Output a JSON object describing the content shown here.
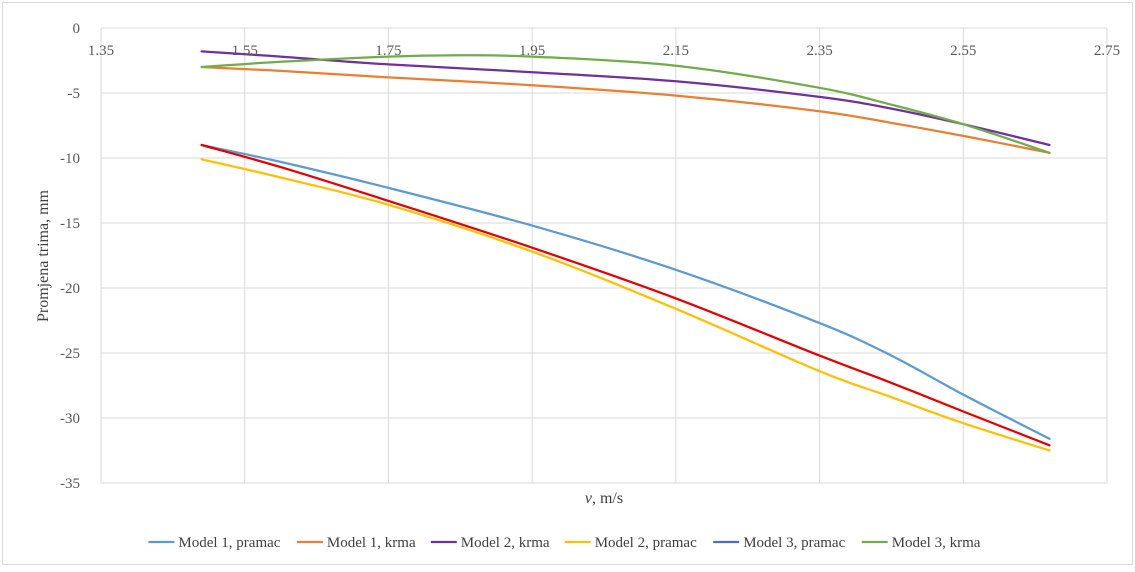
{
  "chart_data": {
    "type": "line",
    "title": "",
    "xlabel_var": "v",
    "xlabel_unit": ", m/s",
    "ylabel": "Promjena trima, mm",
    "xlim": [
      1.35,
      2.75
    ],
    "ylim": [
      -35,
      0
    ],
    "x_ticks": [
      1.35,
      1.55,
      1.75,
      1.95,
      2.15,
      2.35,
      2.55,
      2.75
    ],
    "x_tick_labels": [
      "1.35",
      "1.55",
      "1.75",
      "1.95",
      "2.15",
      "2.35",
      "2.55",
      "2.75"
    ],
    "y_ticks": [
      0,
      -5,
      -10,
      -15,
      -20,
      -25,
      -30,
      -35
    ],
    "y_tick_labels": [
      "0",
      "-5",
      "-10",
      "-15",
      "-20",
      "-25",
      "-30",
      "-35"
    ],
    "x_axis_position": "top",
    "grid": true,
    "legend_position": "bottom",
    "series": [
      {
        "name": "Model 1, pramac",
        "color": "#5B9BD5",
        "x": [
          1.49,
          1.6,
          1.75,
          1.95,
          2.15,
          2.35,
          2.45,
          2.55,
          2.67
        ],
        "y": [
          -9.0,
          -10.3,
          -12.3,
          -15.2,
          -18.6,
          -22.7,
          -25.2,
          -28.2,
          -31.6
        ]
      },
      {
        "name": "Model 1, krma",
        "color": "#ED7D31",
        "x": [
          1.49,
          1.6,
          1.75,
          1.95,
          2.15,
          2.35,
          2.45,
          2.55,
          2.67
        ],
        "y": [
          -3.0,
          -3.3,
          -3.8,
          -4.4,
          -5.2,
          -6.4,
          -7.3,
          -8.3,
          -9.6
        ]
      },
      {
        "name": "Model 2, krma",
        "color": "#7030A0",
        "x": [
          1.49,
          1.6,
          1.75,
          1.95,
          2.15,
          2.35,
          2.45,
          2.55,
          2.67
        ],
        "y": [
          -1.8,
          -2.2,
          -2.8,
          -3.4,
          -4.1,
          -5.3,
          -6.2,
          -7.4,
          -9.0
        ]
      },
      {
        "name": "Model 2, pramac",
        "color": "#FFC000",
        "x": [
          1.49,
          1.6,
          1.75,
          1.95,
          2.15,
          2.35,
          2.45,
          2.55,
          2.67
        ],
        "y": [
          -10.1,
          -11.5,
          -13.6,
          -17.2,
          -21.6,
          -26.4,
          -28.4,
          -30.4,
          -32.5
        ]
      },
      {
        "name": "Model 3, pramac",
        "color": "#E80000",
        "legend_color": "#4472C4",
        "x": [
          1.49,
          1.6,
          1.75,
          1.95,
          2.15,
          2.35,
          2.45,
          2.55,
          2.67
        ],
        "y": [
          -9.0,
          -10.7,
          -13.3,
          -16.9,
          -20.8,
          -25.2,
          -27.3,
          -29.5,
          -32.1
        ]
      },
      {
        "name": "Model 3, krma",
        "color": "#70AD47",
        "x": [
          1.49,
          1.6,
          1.75,
          1.85,
          1.95,
          2.15,
          2.35,
          2.45,
          2.55,
          2.67
        ],
        "y": [
          -3.0,
          -2.6,
          -2.2,
          -2.1,
          -2.2,
          -2.9,
          -4.6,
          -5.9,
          -7.4,
          -9.6
        ]
      }
    ]
  }
}
